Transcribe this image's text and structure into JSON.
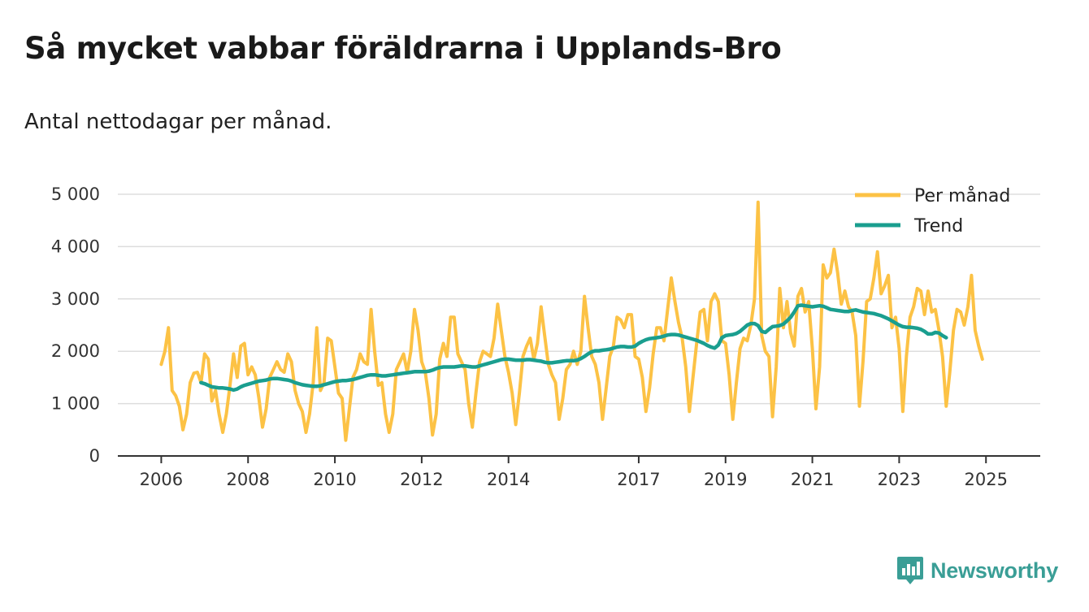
{
  "header": {
    "title": "Så mycket vabbar föräldrarna i Upplands-Bro",
    "subtitle": "Antal nettodagar per månad."
  },
  "brand": {
    "name": "Newsworthy",
    "icon": "bar-chart-icon",
    "color": "#3a9e96"
  },
  "chart_data": {
    "type": "line",
    "title": "Så mycket vabbar föräldrarna i Upplands-Bro",
    "subtitle": "Antal nettodagar per månad.",
    "xlabel": "",
    "ylabel": "",
    "ylim": [
      0,
      5000
    ],
    "xlim": [
      2005.0,
      2026.25
    ],
    "grid": true,
    "legend_position": "top-right",
    "y_ticks": [
      0,
      1000,
      2000,
      3000,
      4000,
      5000
    ],
    "y_tick_labels": [
      "0",
      "1 000",
      "2 000",
      "3 000",
      "4 000",
      "5 000"
    ],
    "x_ticks": [
      2006,
      2008,
      2010,
      2012,
      2014,
      2017,
      2019,
      2021,
      2023,
      2025
    ],
    "x_tick_labels": [
      "2006",
      "2008",
      "2010",
      "2012",
      "2014",
      "2017",
      "2019",
      "2021",
      "2023",
      "2025"
    ],
    "series": [
      {
        "name": "Per månad",
        "color": "#fcc245",
        "x_start": 2006.0,
        "x_step": 0.0833333,
        "values": [
          1750,
          2000,
          2450,
          1250,
          1150,
          950,
          500,
          800,
          1400,
          1580,
          1600,
          1400,
          1950,
          1850,
          1050,
          1250,
          800,
          450,
          800,
          1350,
          1950,
          1500,
          2100,
          2150,
          1550,
          1700,
          1550,
          1100,
          550,
          900,
          1500,
          1650,
          1800,
          1650,
          1600,
          1950,
          1800,
          1250,
          1000,
          850,
          450,
          800,
          1400,
          2450,
          1250,
          1400,
          2250,
          2200,
          1700,
          1200,
          1100,
          300,
          900,
          1500,
          1650,
          1950,
          1800,
          1750,
          2800,
          2000,
          1350,
          1400,
          800,
          450,
          800,
          1650,
          1800,
          1950,
          1600,
          2000,
          2800,
          2400,
          1800,
          1600,
          1100,
          400,
          800,
          1850,
          2150,
          1900,
          2650,
          2650,
          1950,
          1800,
          1650,
          1000,
          550,
          1200,
          1800,
          2000,
          1950,
          1900,
          2250,
          2900,
          2400,
          1900,
          1600,
          1200,
          600,
          1200,
          1900,
          2100,
          2250,
          1850,
          2150,
          2850,
          2300,
          1750,
          1550,
          1400,
          700,
          1100,
          1650,
          1750,
          2000,
          1750,
          2000,
          3050,
          2450,
          1900,
          1750,
          1400,
          700,
          1300,
          1900,
          2100,
          2650,
          2600,
          2450,
          2700,
          2700,
          1900,
          1850,
          1500,
          850,
          1300,
          1950,
          2450,
          2450,
          2200,
          2800,
          3400,
          2950,
          2550,
          2250,
          1700,
          850,
          1500,
          2150,
          2750,
          2800,
          2200,
          2950,
          3100,
          2950,
          2200,
          2150,
          1550,
          700,
          1400,
          2050,
          2250,
          2200,
          2500,
          3000,
          4850,
          2300,
          2000,
          1900,
          750,
          1700,
          3200,
          2450,
          2950,
          2350,
          2100,
          3050,
          3200,
          2750,
          2950,
          2050,
          900,
          1700,
          3650,
          3400,
          3500,
          3950,
          3500,
          2900,
          3150,
          2850,
          2750,
          2300,
          950,
          1800,
          2950,
          3000,
          3400,
          3900,
          3100,
          3250,
          3450,
          2450,
          2650,
          2050,
          850,
          1900,
          2650,
          2850,
          3200,
          3150,
          2700,
          3150,
          2750,
          2800,
          2400,
          1900,
          950,
          1600,
          2400,
          2800,
          2750,
          2500,
          2850,
          3450,
          2400,
          2100,
          1850
        ]
      },
      {
        "name": "Trend",
        "color": "#1a9e8f",
        "x_start": 2006.9167,
        "x_step": 0.0833333,
        "values": [
          1400,
          1380,
          1350,
          1320,
          1310,
          1300,
          1300,
          1290,
          1280,
          1260,
          1280,
          1320,
          1350,
          1370,
          1390,
          1410,
          1430,
          1440,
          1450,
          1470,
          1480,
          1480,
          1470,
          1460,
          1450,
          1430,
          1400,
          1380,
          1360,
          1350,
          1340,
          1330,
          1330,
          1340,
          1360,
          1380,
          1400,
          1420,
          1430,
          1440,
          1440,
          1450,
          1460,
          1480,
          1500,
          1520,
          1540,
          1550,
          1550,
          1540,
          1530,
          1530,
          1540,
          1550,
          1560,
          1570,
          1580,
          1590,
          1600,
          1610,
          1610,
          1610,
          1610,
          1620,
          1640,
          1670,
          1690,
          1700,
          1700,
          1700,
          1700,
          1710,
          1720,
          1720,
          1710,
          1700,
          1700,
          1720,
          1740,
          1760,
          1780,
          1800,
          1820,
          1840,
          1850,
          1850,
          1840,
          1830,
          1830,
          1830,
          1840,
          1840,
          1830,
          1820,
          1810,
          1790,
          1780,
          1780,
          1790,
          1800,
          1810,
          1820,
          1820,
          1820,
          1830,
          1860,
          1900,
          1950,
          1990,
          2010,
          2010,
          2020,
          2030,
          2040,
          2060,
          2080,
          2090,
          2090,
          2080,
          2080,
          2100,
          2150,
          2190,
          2220,
          2240,
          2250,
          2260,
          2270,
          2290,
          2310,
          2320,
          2320,
          2310,
          2290,
          2270,
          2250,
          2230,
          2210,
          2180,
          2150,
          2110,
          2080,
          2060,
          2120,
          2260,
          2300,
          2310,
          2320,
          2340,
          2380,
          2440,
          2500,
          2530,
          2530,
          2490,
          2380,
          2360,
          2420,
          2470,
          2480,
          2490,
          2520,
          2580,
          2650,
          2750,
          2870,
          2880,
          2870,
          2860,
          2850,
          2860,
          2870,
          2860,
          2830,
          2800,
          2790,
          2780,
          2770,
          2760,
          2760,
          2780,
          2790,
          2770,
          2750,
          2740,
          2730,
          2720,
          2700,
          2680,
          2650,
          2620,
          2580,
          2540,
          2500,
          2470,
          2460,
          2460,
          2450,
          2440,
          2420,
          2380,
          2330,
          2330,
          2360,
          2350,
          2300,
          2260
        ]
      }
    ]
  }
}
